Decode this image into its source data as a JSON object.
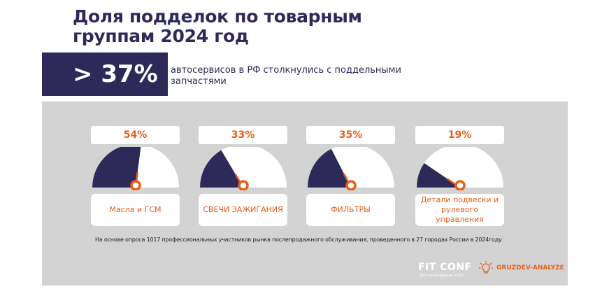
{
  "header": {
    "title": "Доля подделок по товарным группам 2024 год"
  },
  "highlight": {
    "value": "> 37%",
    "text": "автосервисов в РФ столкнулись с поддельными запчастями"
  },
  "chart_data": {
    "type": "gauge",
    "title": "Доля подделок по товарным группам 2024 год",
    "categories": [
      "Масла и ГСМ",
      "СВЕЧИ ЗАЖИГАНИЯ",
      "ФИЛЬТРЫ",
      "Детали подвески и рулевого управления"
    ],
    "values": [
      54,
      33,
      35,
      19
    ],
    "value_labels": [
      "54%",
      "33%",
      "35%",
      "19%"
    ],
    "unit": "%",
    "range": [
      0,
      100
    ]
  },
  "footnote": "На основе опроса 1017 профессиональных участников рынка послепродажного обслуживания, проведенного в 27 городах России в 2024году",
  "logos": {
    "fit": "FIT CONF",
    "fit_sub": "фит конференции 2024",
    "gruzdev": "GRUZDEV-ANALYZE"
  },
  "colors": {
    "navy": "#2d2a5a",
    "orange": "#e85d1a",
    "panel": "#d3d3d3"
  }
}
